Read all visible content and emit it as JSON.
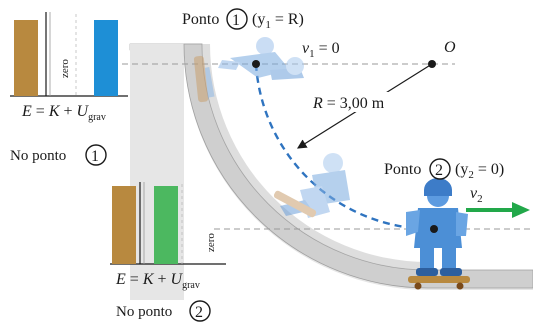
{
  "point1": {
    "label": "Ponto",
    "number": "1",
    "condition_open": "(y",
    "condition_sub": "1",
    "condition_close": " = R)",
    "velocity_var": "v",
    "velocity_sub": "1",
    "velocity_eq": " = 0"
  },
  "point2": {
    "label": "Ponto",
    "number": "2",
    "condition_open": "(y",
    "condition_sub": "2",
    "condition_close": " = 0)",
    "velocity_var": "v",
    "velocity_sub": "2"
  },
  "center_label": "O",
  "radius_label": "R = 3,00 m",
  "bar_chart_1": {
    "zero_label": "zero",
    "eq_E": "E",
    "eq_equals": " = ",
    "eq_K": "K",
    "eq_plus": " + ",
    "eq_U": "U",
    "eq_U_sub": "grav",
    "caption": "No ponto",
    "caption_number": "1",
    "bars": {
      "E": 1.0,
      "K": 0.0,
      "U": 1.0
    },
    "colors": {
      "E": "#b8893f",
      "K": "#4cb860",
      "U": "#1e8fd6"
    }
  },
  "bar_chart_2": {
    "zero_label": "zero",
    "eq_E": "E",
    "eq_equals": " = ",
    "eq_K": "K",
    "eq_plus": " + ",
    "eq_U": "U",
    "eq_U_sub": "grav",
    "caption": "No ponto",
    "caption_number": "2",
    "bars": {
      "E": 1.0,
      "K": 1.0,
      "U": 0.0
    },
    "colors": {
      "E": "#b8893f",
      "K": "#4cb860",
      "U": "#1e8fd6"
    }
  },
  "colors": {
    "ramp": "#d4d4d4",
    "ramp_edge": "#9a9a9a",
    "path": "#2f74c0",
    "velocity_arrow": "#22a84a",
    "skater": "#4c8fd6"
  }
}
